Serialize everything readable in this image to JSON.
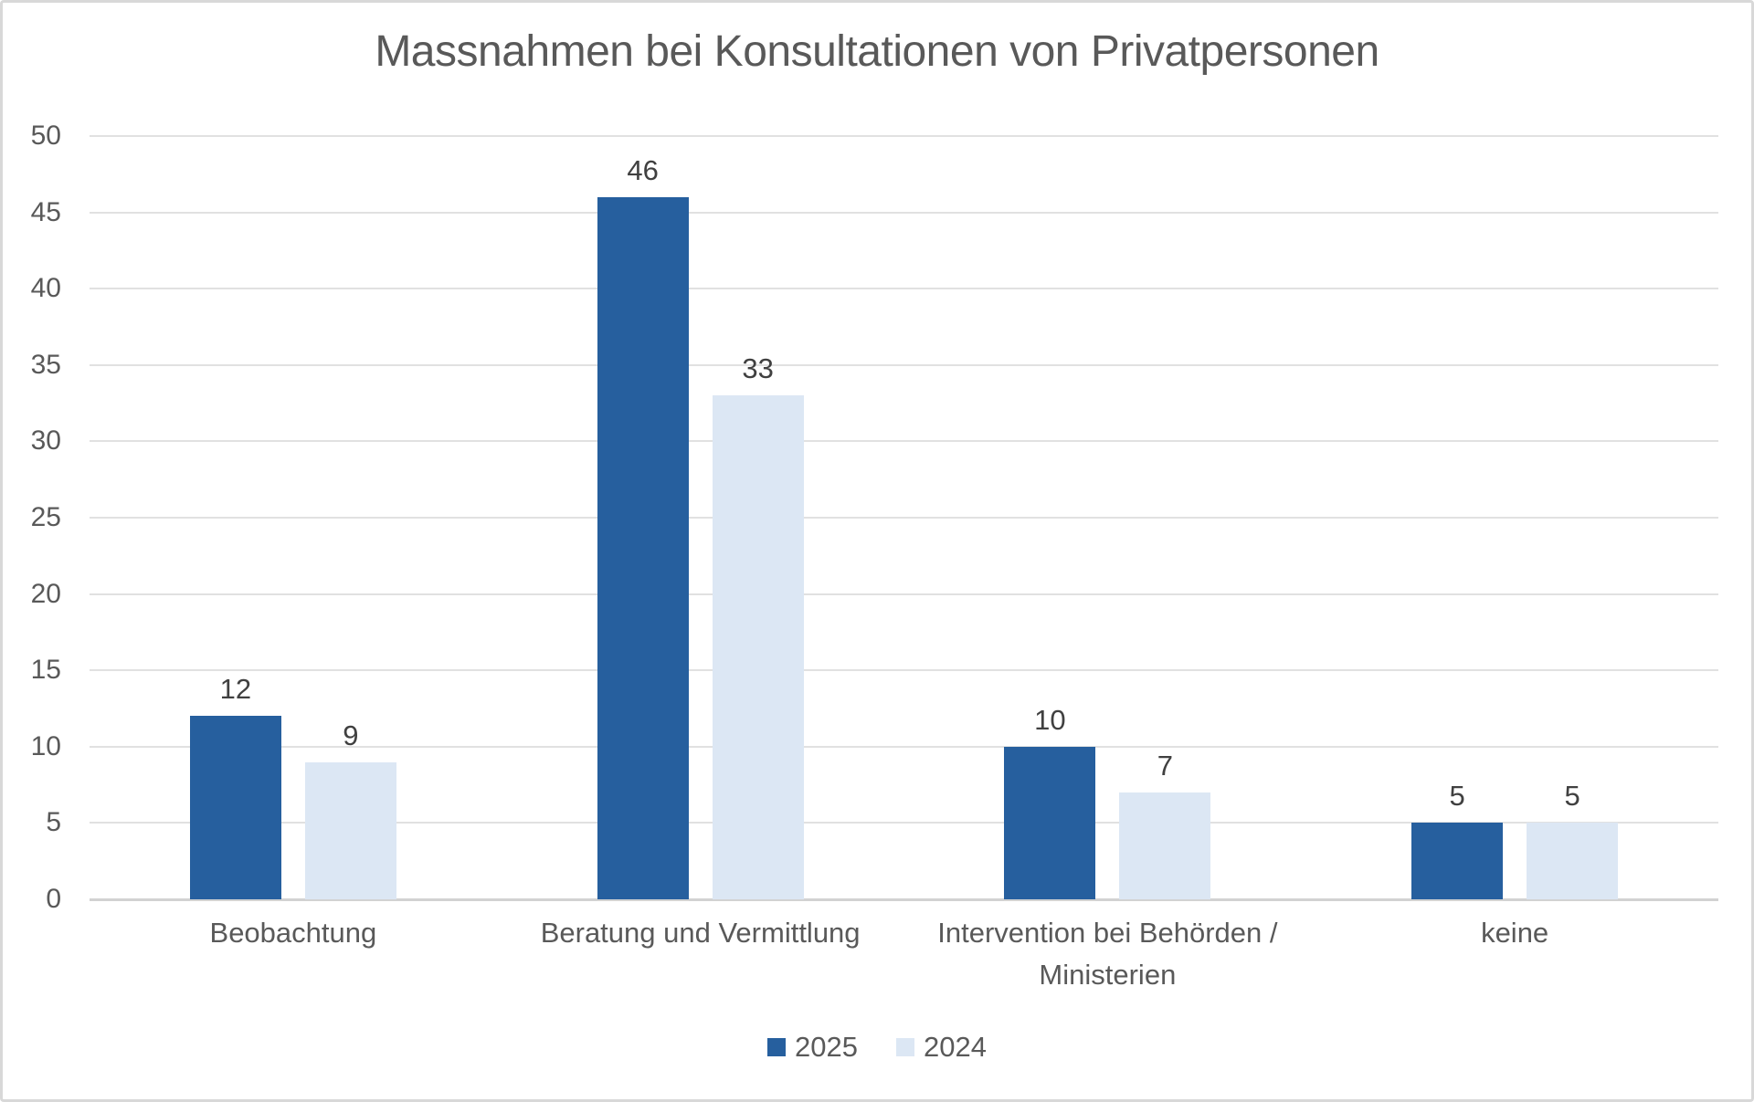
{
  "frame": {
    "background": "#ffffff",
    "border_color": "#d8d8d8"
  },
  "chart_data": {
    "type": "bar",
    "title": "Massnahmen bei Konsultationen von Privatpersonen",
    "title_color": "#595959",
    "categories": [
      "Beobachtung",
      "Beratung und Vermittlung",
      "Intervention bei Behörden / Ministerien",
      "keine"
    ],
    "series": [
      {
        "name": "2025",
        "color": "#265f9e",
        "values": [
          12,
          46,
          10,
          5
        ]
      },
      {
        "name": "2024",
        "color": "#dce7f4",
        "values": [
          9,
          33,
          7,
          5
        ]
      }
    ],
    "xlabel": "",
    "ylabel": "",
    "ylim": [
      0,
      50
    ],
    "ytick_step": 5,
    "yticks": [
      0,
      5,
      10,
      15,
      20,
      25,
      30,
      35,
      40,
      45,
      50
    ],
    "grid": true,
    "gridline_color": "#e1e1e1",
    "axisline_color": "#d2d2d2",
    "axis_text_color": "#595959",
    "data_labels": true,
    "data_label_color": "#404040",
    "legend_position": "bottom"
  }
}
